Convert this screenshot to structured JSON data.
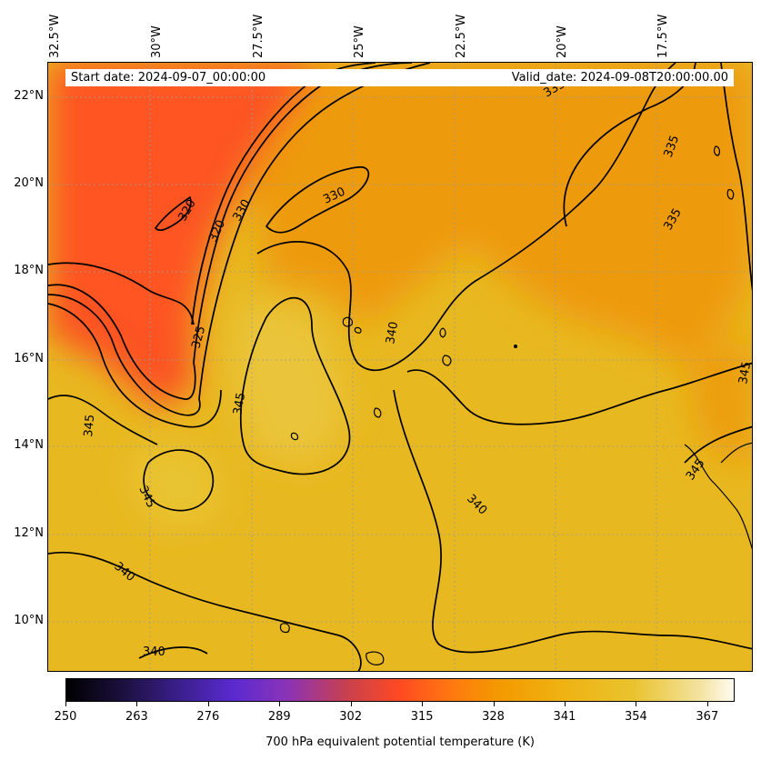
{
  "map": {
    "longitude_labels": [
      "32.5°W",
      "30°W",
      "27.5°W",
      "25°W",
      "22.5°W",
      "20°W",
      "17.5°W"
    ],
    "latitude_labels": [
      "22°N",
      "20°N",
      "18°N",
      "16°N",
      "14°N",
      "12°N",
      "10°N"
    ],
    "start_date": "Start date: 2024-09-07_00:00:00",
    "valid_date": "Valid_date: 2024-09-08T20:00:00.00",
    "contour_labels": [
      "320",
      "320",
      "330",
      "330",
      "325",
      "335",
      "335",
      "335",
      "340",
      "340",
      "340",
      "340",
      "345",
      "345",
      "345",
      "345",
      "345"
    ],
    "gridlines": true,
    "colors": {
      "cold_region": "#fb5320",
      "warm_region": "#e8bb22",
      "mid_region": "#ee9a10",
      "contour": "#000000"
    }
  },
  "colorbar": {
    "ticks": [
      "250",
      "263",
      "276",
      "289",
      "302",
      "315",
      "328",
      "341",
      "354",
      "367"
    ],
    "range": [
      250,
      372
    ],
    "label": "700 hPa equivalent potential temperature (K)"
  }
}
